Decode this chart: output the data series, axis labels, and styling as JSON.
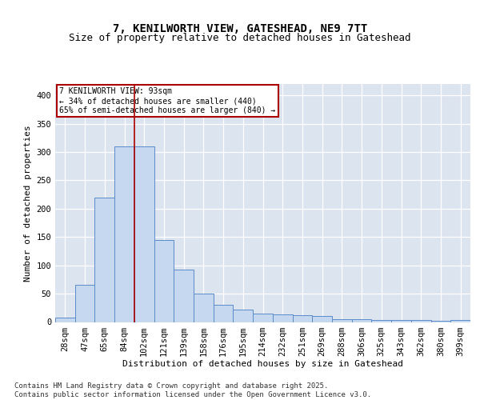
{
  "title1": "7, KENILWORTH VIEW, GATESHEAD, NE9 7TT",
  "title2": "Size of property relative to detached houses in Gateshead",
  "xlabel": "Distribution of detached houses by size in Gateshead",
  "ylabel": "Number of detached properties",
  "categories": [
    "28sqm",
    "47sqm",
    "65sqm",
    "84sqm",
    "102sqm",
    "121sqm",
    "139sqm",
    "158sqm",
    "176sqm",
    "195sqm",
    "214sqm",
    "232sqm",
    "251sqm",
    "269sqm",
    "288sqm",
    "306sqm",
    "325sqm",
    "343sqm",
    "362sqm",
    "380sqm",
    "399sqm"
  ],
  "values": [
    8,
    65,
    220,
    310,
    310,
    145,
    93,
    50,
    30,
    22,
    15,
    13,
    12,
    10,
    5,
    5,
    4,
    3,
    3,
    2,
    4
  ],
  "bar_color": "#c5d8f0",
  "bar_edge_color": "#5b8cc8",
  "bg_color": "#dce4f0",
  "grid_color": "#ffffff",
  "annotation_text": "7 KENILWORTH VIEW: 93sqm\n← 34% of detached houses are smaller (440)\n65% of semi-detached houses are larger (840) →",
  "annotation_box_color": "#ffffff",
  "annotation_box_edge": "#aa0000",
  "red_line_index": 3,
  "ylim": [
    0,
    420
  ],
  "yticks": [
    0,
    50,
    100,
    150,
    200,
    250,
    300,
    350,
    400
  ],
  "footer": "Contains HM Land Registry data © Crown copyright and database right 2025.\nContains public sector information licensed under the Open Government Licence v3.0.",
  "title1_fontsize": 10,
  "title2_fontsize": 9,
  "axis_fontsize": 8,
  "tick_fontsize": 7.5,
  "footer_fontsize": 6.5
}
